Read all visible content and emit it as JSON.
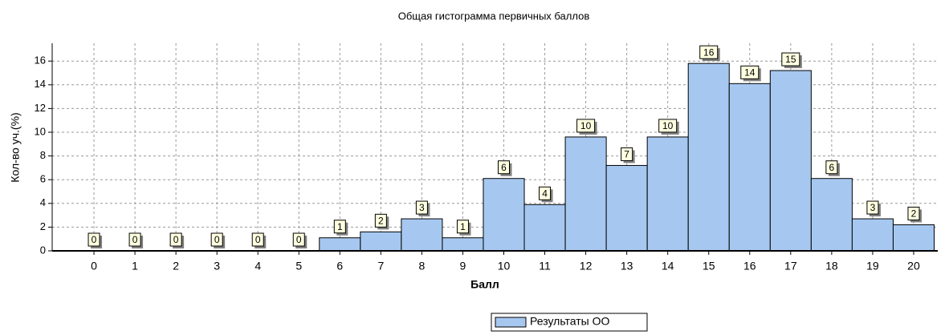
{
  "chart_data": {
    "type": "bar",
    "title": "Общая гистограмма первичных баллов",
    "x_label": "Балл",
    "y_label": "Кол-во уч.(%)",
    "categories": [
      "0",
      "1",
      "2",
      "3",
      "4",
      "5",
      "6",
      "7",
      "8",
      "9",
      "10",
      "11",
      "12",
      "13",
      "14",
      "15",
      "16",
      "17",
      "18",
      "19",
      "20"
    ],
    "series": [
      {
        "name": "Результаты ОО",
        "color": "#a6c8f0",
        "values": [
          0,
          0,
          0,
          0,
          0,
          0,
          1.1,
          1.6,
          2.7,
          1.1,
          6.1,
          3.9,
          9.6,
          7.2,
          9.6,
          15.8,
          14.1,
          15.2,
          6.1,
          2.7,
          2.2
        ],
        "value_labels": [
          "0",
          "0",
          "0",
          "0",
          "0",
          "0",
          "1",
          "2",
          "3",
          "1",
          "6",
          "4",
          "10",
          "7",
          "10",
          "16",
          "14",
          "15",
          "6",
          "3",
          "2"
        ]
      }
    ],
    "ylim": [
      0,
      17.5
    ],
    "yticks": [
      0,
      2,
      4,
      6,
      8,
      10,
      12,
      14,
      16
    ],
    "grid": true,
    "legend": "bottom"
  }
}
